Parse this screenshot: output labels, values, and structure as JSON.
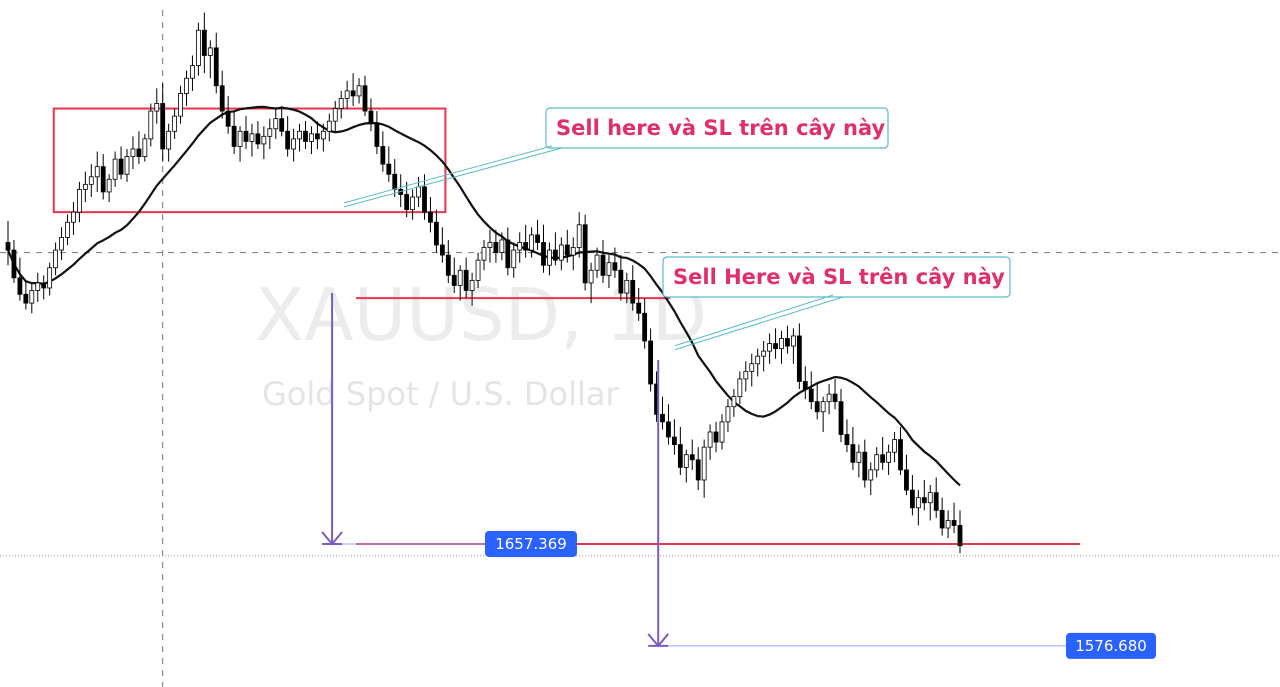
{
  "chart_data": {
    "type": "candlestick",
    "symbol": "XAUUSD, 1D",
    "description": "Gold Spot / U.S. Dollar",
    "indicator": "moving average",
    "colors": {
      "candle_up_body": "#ffffff",
      "candle_down_body": "#000000",
      "candle_outline": "#000000",
      "moving_average": "#111111",
      "zones": "#e8344e",
      "measure": "#7b5cc4",
      "callout_border": "#5bbcc8",
      "callout_text": "#e0306a",
      "price_tag": "#2962ff"
    },
    "price_range": [
      1560,
      2080
    ],
    "candles": [
      [
        1896,
        1913,
        1878,
        1890
      ],
      [
        1890,
        1898,
        1864,
        1868
      ],
      [
        1868,
        1884,
        1850,
        1855
      ],
      [
        1855,
        1866,
        1843,
        1848
      ],
      [
        1848,
        1864,
        1840,
        1858
      ],
      [
        1858,
        1872,
        1849,
        1864
      ],
      [
        1864,
        1870,
        1851,
        1860
      ],
      [
        1860,
        1880,
        1854,
        1876
      ],
      [
        1876,
        1896,
        1870,
        1890
      ],
      [
        1890,
        1908,
        1882,
        1900
      ],
      [
        1900,
        1918,
        1894,
        1912
      ],
      [
        1912,
        1928,
        1902,
        1920
      ],
      [
        1920,
        1944,
        1912,
        1938
      ],
      [
        1938,
        1952,
        1928,
        1942
      ],
      [
        1942,
        1958,
        1932,
        1948
      ],
      [
        1948,
        1968,
        1936,
        1956
      ],
      [
        1956,
        1966,
        1930,
        1936
      ],
      [
        1936,
        1950,
        1928,
        1946
      ],
      [
        1946,
        1968,
        1940,
        1962
      ],
      [
        1962,
        1972,
        1946,
        1950
      ],
      [
        1950,
        1970,
        1944,
        1964
      ],
      [
        1964,
        1980,
        1954,
        1970
      ],
      [
        1970,
        1984,
        1958,
        1964
      ],
      [
        1964,
        1982,
        1960,
        1978
      ],
      [
        1978,
        2006,
        1972,
        2000
      ],
      [
        2000,
        2018,
        1990,
        2006
      ],
      [
        2006,
        2022,
        1960,
        1970
      ],
      [
        1970,
        1990,
        1960,
        1984
      ],
      [
        1984,
        2002,
        1978,
        1996
      ],
      [
        1996,
        2020,
        1990,
        2014
      ],
      [
        2014,
        2032,
        2004,
        2026
      ],
      [
        2026,
        2044,
        2016,
        2036
      ],
      [
        2036,
        2070,
        2028,
        2064
      ],
      [
        2064,
        2078,
        2030,
        2044
      ],
      [
        2044,
        2056,
        2026,
        2050
      ],
      [
        2050,
        2062,
        2014,
        2020
      ],
      [
        2020,
        2032,
        1994,
        2000
      ],
      [
        2000,
        2012,
        1982,
        1988
      ],
      [
        1988,
        2000,
        1966,
        1972
      ],
      [
        1972,
        1988,
        1960,
        1984
      ],
      [
        1984,
        1996,
        1970,
        1976
      ],
      [
        1976,
        1990,
        1964,
        1982
      ],
      [
        1982,
        1992,
        1970,
        1974
      ],
      [
        1974,
        1988,
        1962,
        1980
      ],
      [
        1980,
        1994,
        1970,
        1986
      ],
      [
        1986,
        2002,
        1978,
        1994
      ],
      [
        1994,
        2004,
        1980,
        1984
      ],
      [
        1984,
        1996,
        1964,
        1970
      ],
      [
        1970,
        1986,
        1960,
        1978
      ],
      [
        1978,
        1990,
        1968,
        1984
      ],
      [
        1984,
        1992,
        1970,
        1976
      ],
      [
        1976,
        1988,
        1966,
        1982
      ],
      [
        1982,
        1992,
        1970,
        1978
      ],
      [
        1978,
        1990,
        1968,
        1984
      ],
      [
        1984,
        1998,
        1976,
        1992
      ],
      [
        1992,
        2008,
        1984,
        2002
      ],
      [
        2002,
        2016,
        1994,
        2010
      ],
      [
        2010,
        2024,
        2002,
        2016
      ],
      [
        2016,
        2030,
        2004,
        2012
      ],
      [
        2012,
        2026,
        2006,
        2020
      ],
      [
        2020,
        2028,
        1996,
        2000
      ],
      [
        2000,
        2010,
        1984,
        1990
      ],
      [
        1990,
        2000,
        1966,
        1972
      ],
      [
        1972,
        1984,
        1952,
        1958
      ],
      [
        1958,
        1972,
        1944,
        1950
      ],
      [
        1950,
        1962,
        1932,
        1938
      ],
      [
        1938,
        1950,
        1924,
        1934
      ],
      [
        1934,
        1944,
        1916,
        1922
      ],
      [
        1922,
        1938,
        1914,
        1932
      ],
      [
        1932,
        1948,
        1924,
        1940
      ],
      [
        1940,
        1950,
        1914,
        1920
      ],
      [
        1920,
        1932,
        1904,
        1912
      ],
      [
        1912,
        1922,
        1888,
        1894
      ],
      [
        1894,
        1908,
        1880,
        1886
      ],
      [
        1886,
        1898,
        1864,
        1870
      ],
      [
        1870,
        1884,
        1856,
        1862
      ],
      [
        1862,
        1878,
        1850,
        1874
      ],
      [
        1874,
        1884,
        1852,
        1858
      ],
      [
        1858,
        1872,
        1846,
        1866
      ],
      [
        1866,
        1888,
        1860,
        1882
      ],
      [
        1882,
        1898,
        1874,
        1892
      ],
      [
        1892,
        1906,
        1880,
        1896
      ],
      [
        1896,
        1906,
        1880,
        1888
      ],
      [
        1888,
        1904,
        1882,
        1898
      ],
      [
        1898,
        1908,
        1870,
        1876
      ],
      [
        1876,
        1896,
        1868,
        1890
      ],
      [
        1890,
        1904,
        1880,
        1896
      ],
      [
        1896,
        1910,
        1884,
        1890
      ],
      [
        1890,
        1908,
        1884,
        1902
      ],
      [
        1902,
        1914,
        1890,
        1896
      ],
      [
        1896,
        1910,
        1872,
        1878
      ],
      [
        1878,
        1896,
        1870,
        1890
      ],
      [
        1890,
        1904,
        1878,
        1882
      ],
      [
        1882,
        1900,
        1874,
        1894
      ],
      [
        1894,
        1906,
        1880,
        1886
      ],
      [
        1886,
        1900,
        1874,
        1892
      ],
      [
        1892,
        1920,
        1884,
        1910
      ],
      [
        1910,
        1918,
        1858,
        1864
      ],
      [
        1864,
        1880,
        1848,
        1874
      ],
      [
        1874,
        1892,
        1868,
        1886
      ],
      [
        1886,
        1898,
        1864,
        1870
      ],
      [
        1870,
        1886,
        1860,
        1880
      ],
      [
        1880,
        1892,
        1868,
        1874
      ],
      [
        1874,
        1886,
        1850,
        1856
      ],
      [
        1856,
        1872,
        1848,
        1866
      ],
      [
        1866,
        1878,
        1842,
        1848
      ],
      [
        1848,
        1860,
        1834,
        1840
      ],
      [
        1840,
        1852,
        1812,
        1818
      ],
      [
        1818,
        1828,
        1778,
        1784
      ],
      [
        1784,
        1794,
        1754,
        1760
      ],
      [
        1760,
        1774,
        1748,
        1754
      ],
      [
        1754,
        1768,
        1736,
        1742
      ],
      [
        1742,
        1756,
        1728,
        1736
      ],
      [
        1736,
        1750,
        1712,
        1718
      ],
      [
        1718,
        1732,
        1706,
        1728
      ],
      [
        1728,
        1740,
        1716,
        1724
      ],
      [
        1724,
        1734,
        1700,
        1708
      ],
      [
        1708,
        1740,
        1694,
        1734
      ],
      [
        1734,
        1752,
        1724,
        1746
      ],
      [
        1746,
        1754,
        1730,
        1738
      ],
      [
        1738,
        1760,
        1732,
        1754
      ],
      [
        1754,
        1772,
        1746,
        1766
      ],
      [
        1766,
        1780,
        1758,
        1774
      ],
      [
        1774,
        1794,
        1768,
        1788
      ],
      [
        1788,
        1802,
        1778,
        1794
      ],
      [
        1794,
        1808,
        1782,
        1800
      ],
      [
        1800,
        1812,
        1790,
        1806
      ],
      [
        1806,
        1818,
        1794,
        1810
      ],
      [
        1810,
        1824,
        1800,
        1816
      ],
      [
        1816,
        1828,
        1804,
        1812
      ],
      [
        1812,
        1826,
        1800,
        1820
      ],
      [
        1820,
        1830,
        1808,
        1814
      ],
      [
        1814,
        1828,
        1800,
        1822
      ],
      [
        1822,
        1832,
        1780,
        1786
      ],
      [
        1786,
        1798,
        1772,
        1780
      ],
      [
        1780,
        1794,
        1764,
        1770
      ],
      [
        1770,
        1784,
        1756,
        1762
      ],
      [
        1762,
        1774,
        1746,
        1770
      ],
      [
        1770,
        1784,
        1760,
        1776
      ],
      [
        1776,
        1788,
        1764,
        1770
      ],
      [
        1770,
        1780,
        1738,
        1744
      ],
      [
        1744,
        1756,
        1730,
        1736
      ],
      [
        1736,
        1750,
        1716,
        1722
      ],
      [
        1722,
        1736,
        1710,
        1730
      ],
      [
        1730,
        1740,
        1702,
        1708
      ],
      [
        1708,
        1722,
        1696,
        1716
      ],
      [
        1716,
        1734,
        1710,
        1728
      ],
      [
        1728,
        1742,
        1716,
        1722
      ],
      [
        1722,
        1736,
        1712,
        1730
      ],
      [
        1730,
        1746,
        1722,
        1740
      ],
      [
        1740,
        1750,
        1712,
        1716
      ],
      [
        1716,
        1728,
        1696,
        1700
      ],
      [
        1700,
        1712,
        1680,
        1686
      ],
      [
        1686,
        1700,
        1672,
        1694
      ],
      [
        1694,
        1708,
        1684,
        1690
      ],
      [
        1690,
        1704,
        1676,
        1698
      ],
      [
        1698,
        1710,
        1678,
        1684
      ],
      [
        1684,
        1694,
        1664,
        1670
      ],
      [
        1670,
        1684,
        1662,
        1676
      ],
      [
        1676,
        1690,
        1666,
        1672
      ],
      [
        1672,
        1684,
        1650,
        1656
      ]
    ],
    "ma_period": 20,
    "zones": [
      {
        "type": "rectangle",
        "bar_start": 5,
        "bar_end": 52,
        "price_top": 2002,
        "price_bottom": 1920
      },
      {
        "type": "horizontal",
        "bar_start": 40,
        "bar_end": 76,
        "price": 1852
      },
      {
        "type": "horizontal",
        "bar_start": 40,
        "bar_end": 133,
        "price": 1657.369
      }
    ],
    "measures": [
      {
        "bar": 38,
        "from": 1856,
        "to": 1657.369
      },
      {
        "bar": 76,
        "from": 1803,
        "to": 1576.68
      }
    ],
    "callouts": [
      {
        "text": "Sell here và SL trên cây này",
        "anchor_bar": 39,
        "anchor_price": 1925
      },
      {
        "text": "Sell Here và SL trên cây này",
        "anchor_bar": 77,
        "anchor_price": 1812
      }
    ],
    "price_labels": [
      "1657.369",
      "1576.680"
    ],
    "crosshair_price": 1888,
    "last_price": 1648
  }
}
